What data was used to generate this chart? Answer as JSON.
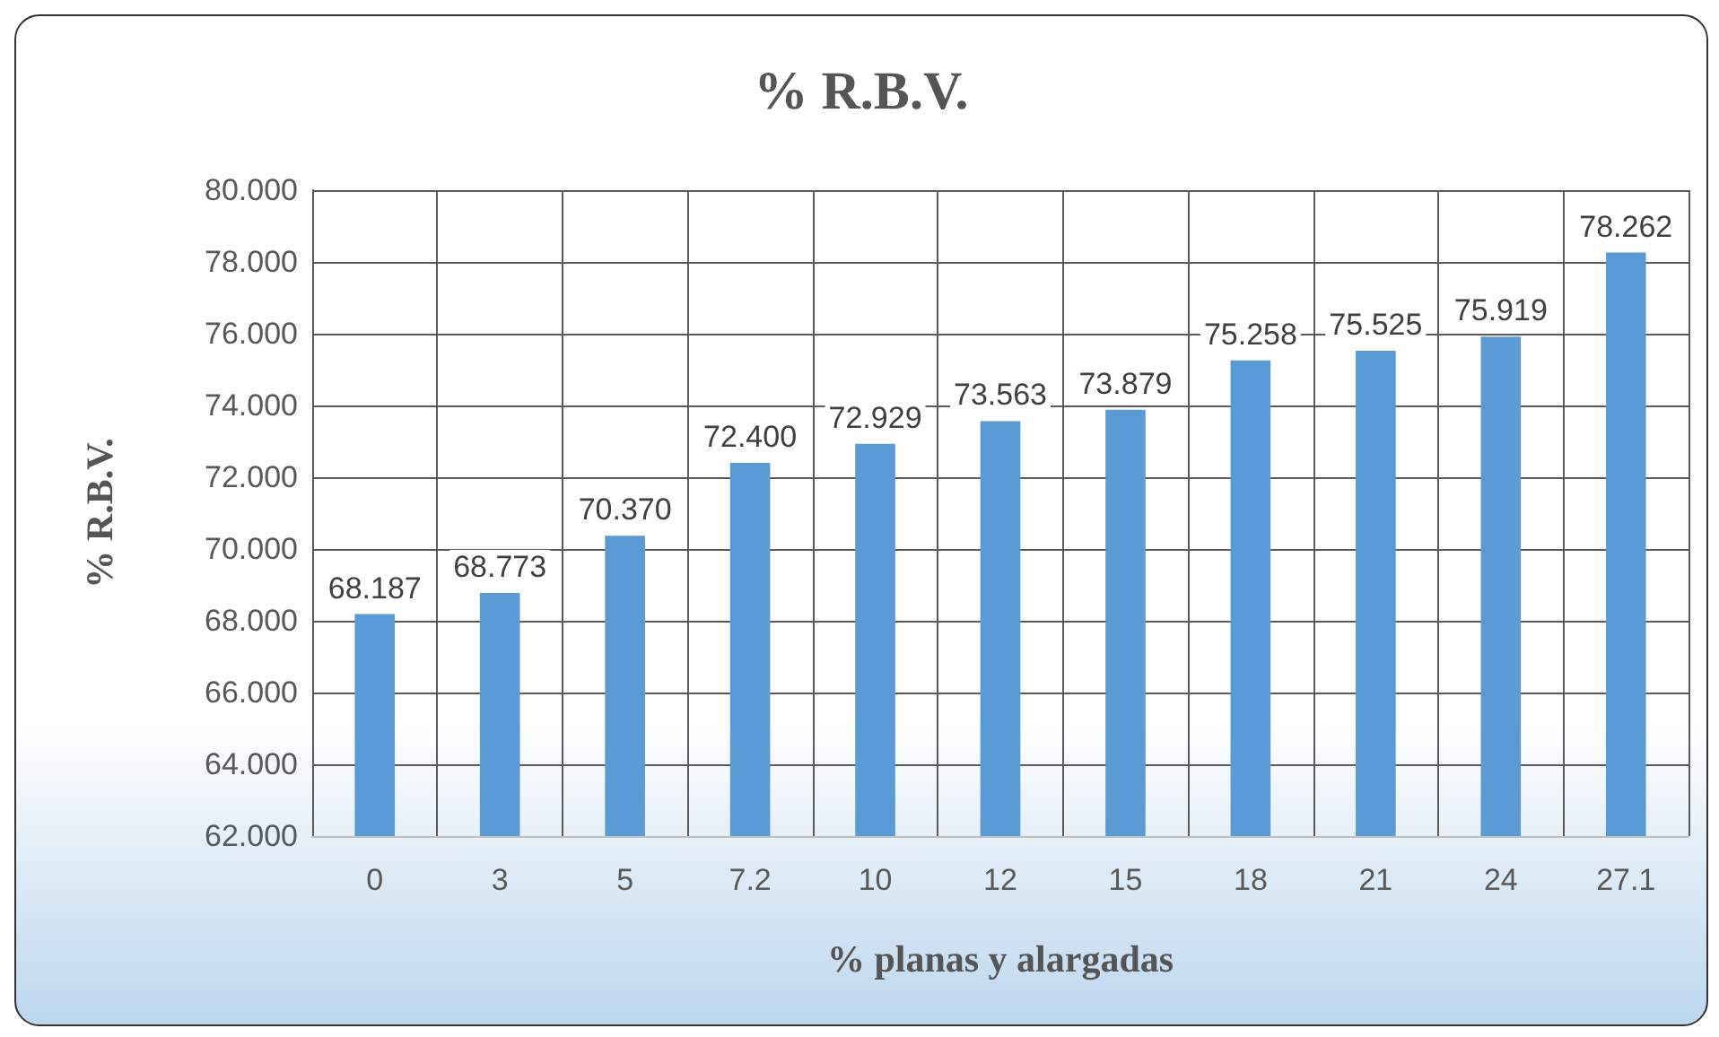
{
  "chart_data": {
    "type": "bar",
    "title": "% R.B.V.",
    "xlabel": "% planas y alargadas",
    "ylabel": "% R.B.V.",
    "categories": [
      "0",
      "3",
      "5",
      "7.2",
      "10",
      "12",
      "15",
      "18",
      "21",
      "24",
      "27.1"
    ],
    "values": [
      68.187,
      68.773,
      70.37,
      72.4,
      72.929,
      73.563,
      73.879,
      75.258,
      75.525,
      75.919,
      78.262
    ],
    "color": "#5b9bd5",
    "ylim": [
      62,
      80
    ],
    "yticks": [
      {
        "value": 62,
        "label": "62.000"
      },
      {
        "value": 64,
        "label": "64.000"
      },
      {
        "value": 66,
        "label": "66.000"
      },
      {
        "value": 68,
        "label": "68.000"
      },
      {
        "value": 70,
        "label": "70.000"
      },
      {
        "value": 72,
        "label": "72.000"
      },
      {
        "value": 74,
        "label": "74.000"
      },
      {
        "value": 76,
        "label": "76.000"
      },
      {
        "value": 78,
        "label": "78.000"
      },
      {
        "value": 80,
        "label": "80.000"
      }
    ],
    "value_labels": [
      "68.187",
      "68.773",
      "70.370",
      "72.400",
      "72.929",
      "73.563",
      "73.879",
      "75.258",
      "75.525",
      "75.919",
      "78.262"
    ],
    "grid": true
  }
}
